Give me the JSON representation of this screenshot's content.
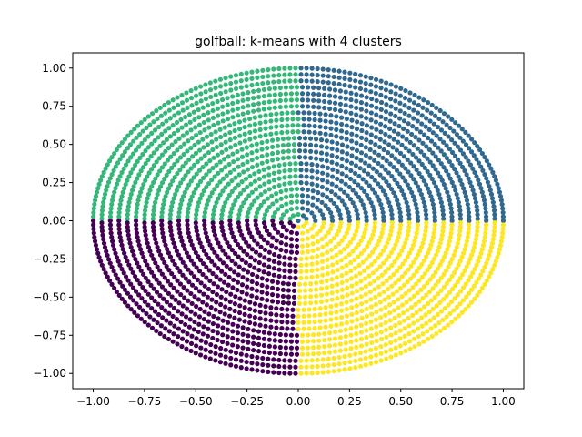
{
  "chart_data": {
    "type": "scatter",
    "title": "golfball: k-means with 4 clusters",
    "xlabel": "",
    "ylabel": "",
    "xlim": [
      -1.1,
      1.1
    ],
    "ylim": [
      -1.1,
      1.1
    ],
    "x_ticks": [
      "−1.00",
      "−0.75",
      "−0.50",
      "−0.25",
      "0.00",
      "0.25",
      "0.50",
      "0.75",
      "1.00"
    ],
    "y_ticks": [
      "−1.00",
      "−0.75",
      "−0.50",
      "−0.25",
      "0.00",
      "0.25",
      "0.50",
      "0.75",
      "1.00"
    ],
    "grid": false,
    "legend": "none",
    "point_set": {
      "shape": "unit disk of points arranged in concentric rings (golf-ball dimple pattern)",
      "rings": 24,
      "radius": 1.0
    },
    "clusters": [
      {
        "id": 0,
        "color": "#440154",
        "region": "angles 180°–270° (lower-left quadrant)"
      },
      {
        "id": 1,
        "color": "#31688e",
        "region": "angles 0°–90° (upper-right quadrant)"
      },
      {
        "id": 2,
        "color": "#35b779",
        "region": "angles 90°–180° (upper-left quadrant)"
      },
      {
        "id": 3,
        "color": "#fde725",
        "region": "angles 270°–360° (lower-right quadrant)"
      }
    ]
  }
}
